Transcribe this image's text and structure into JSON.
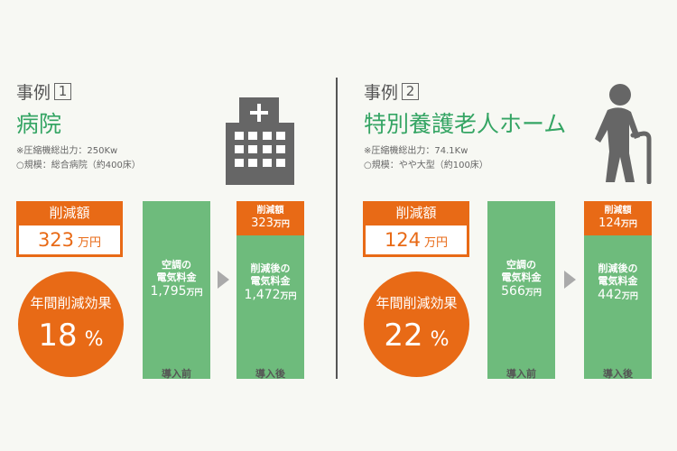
{
  "cases": [
    {
      "label": "事例",
      "num": "1",
      "facility": "病院",
      "spec1": "※圧縮機総出力：250Kw",
      "spec2": "○規模：総合病院（約400床）",
      "icon": "hospital-building-icon",
      "reduction_title": "削減額",
      "reduction_value": "323",
      "reduction_unit": "万円",
      "annual_title": "年間削減効果",
      "annual_value": "18",
      "annual_unit": "%",
      "before_label_1": "空調の",
      "before_label_2": "電気料金",
      "before_value": "1,795",
      "before_unit": "万円",
      "after_top_title": "削減額",
      "after_top_value": "323",
      "after_top_unit": "万円",
      "after_label_1": "削減後の",
      "after_label_2": "電気料金",
      "after_value": "1,472",
      "after_unit": "万円",
      "caption_before": "導入前",
      "caption_after": "導入後"
    },
    {
      "label": "事例",
      "num": "2",
      "facility": "特別養護老人ホーム",
      "spec1": "※圧縮機総出力：74.1Kw",
      "spec2": "○規模：やや大型（約100床）",
      "icon": "elderly-person-icon",
      "reduction_title": "削減額",
      "reduction_value": "124",
      "reduction_unit": "万円",
      "annual_title": "年間削減効果",
      "annual_value": "22",
      "annual_unit": "%",
      "before_label_1": "空調の",
      "before_label_2": "電気料金",
      "before_value": "566",
      "before_unit": "万円",
      "after_top_title": "削減額",
      "after_top_value": "124",
      "after_top_unit": "万円",
      "after_label_1": "削減後の",
      "after_label_2": "電気料金",
      "after_value": "442",
      "after_unit": "万円",
      "caption_before": "導入前",
      "caption_after": "導入後"
    }
  ],
  "colors": {
    "orange": "#e86a16",
    "green": "#6ebb7c",
    "title_green": "#35a564",
    "icon_gray": "#666666"
  }
}
